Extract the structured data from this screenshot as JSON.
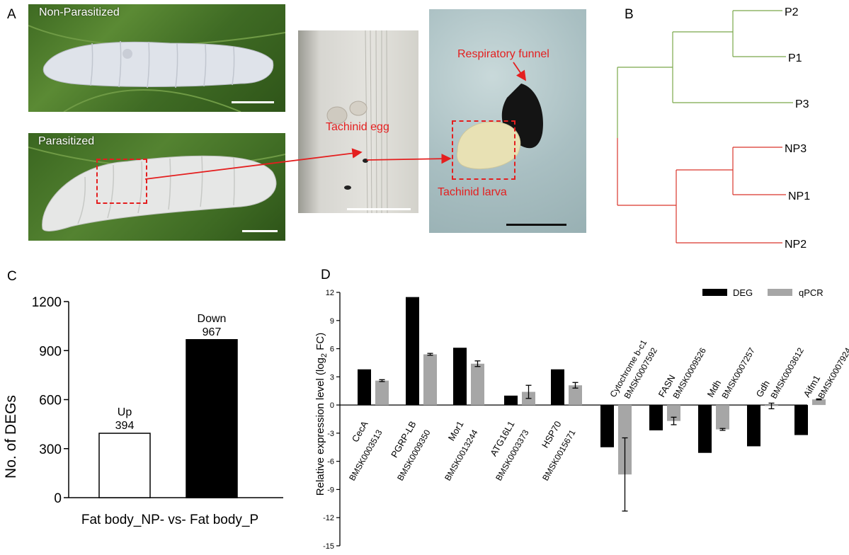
{
  "panel_letters": {
    "a": "A",
    "b": "B",
    "c": "C",
    "d": "D"
  },
  "panel_a": {
    "label_nonparasitized": "Non-Parasitized",
    "label_parasitized": "Parasitized",
    "label_tachinid_egg": "Tachinid egg",
    "label_respiratory_funnel": "Respiratory funnel",
    "label_tachinid_larva": "Tachinid larva",
    "annotation_color": "#e41f1f"
  },
  "panel_b": {
    "leaves": [
      "P2",
      "P1",
      "P3",
      "NP3",
      "NP1",
      "NP2"
    ],
    "colors": {
      "P": "#7aa84a",
      "NP": "#d9352b"
    }
  },
  "chart_data": [
    {
      "type": "bar",
      "panel": "C",
      "categories": [
        "Up",
        "Down"
      ],
      "values": [
        394,
        967
      ],
      "bar_colors": [
        "#ffffff",
        "#000000"
      ],
      "ylabel": "No. of DEGs",
      "xlabel": "Fat body_NP- vs- Fat body_P",
      "ylim": [
        0,
        1200
      ],
      "yticks": [
        0,
        300,
        600,
        900,
        1200
      ]
    },
    {
      "type": "bar",
      "panel": "D",
      "ylabel": "Relative expression level (log2 FC)",
      "ylabel_main": "Relative expression level (log",
      "ylabel_sub": "2",
      "ylabel_end": " FC)",
      "ylim": [
        -15,
        12
      ],
      "yticks": [
        12,
        9,
        6,
        3,
        0,
        -3,
        -6,
        -9,
        -12,
        -15
      ],
      "legend": [
        "DEG",
        "qPCR"
      ],
      "legend_position": "top-right",
      "series_colors": {
        "DEG": "#000000",
        "qPCR": "#a6a6a6"
      },
      "genes": [
        {
          "name": "CecA",
          "id": "BMSK0003513",
          "deg": 3.8,
          "qpcr": 2.6,
          "err": 0.1
        },
        {
          "name": "PGRP-LB",
          "id": "BMSK0009350",
          "deg": 11.5,
          "qpcr": 5.4,
          "err": 0.1
        },
        {
          "name": "Mor1",
          "id": "BMSK0013244",
          "deg": 6.1,
          "qpcr": 4.4,
          "err": 0.3
        },
        {
          "name": "ATG16L1",
          "id": "BMSK0003373",
          "deg": 1.0,
          "qpcr": 1.4,
          "err": 0.7
        },
        {
          "name": "HSP70",
          "id": "BMSK0015671",
          "deg": 3.8,
          "qpcr": 2.1,
          "err": 0.3
        },
        {
          "name": "Cytochrome b-c1",
          "id": "BMSK0007592",
          "deg": -4.5,
          "qpcr": -7.4,
          "err": 3.9
        },
        {
          "name": "FASN",
          "id": "BMSK0009526",
          "deg": -2.7,
          "qpcr": -1.7,
          "err": 0.4
        },
        {
          "name": "Mdh",
          "id": "BMSK0007257",
          "deg": -5.1,
          "qpcr": -2.6,
          "err": 0.1
        },
        {
          "name": "Gdh",
          "id": "BMSK0003612",
          "deg": -4.4,
          "qpcr": -0.1,
          "err": 0.3
        },
        {
          "name": "Aifm1",
          "id": "BMSK0007924",
          "deg": -3.2,
          "qpcr": 0.6,
          "err": 0.05
        }
      ]
    }
  ]
}
